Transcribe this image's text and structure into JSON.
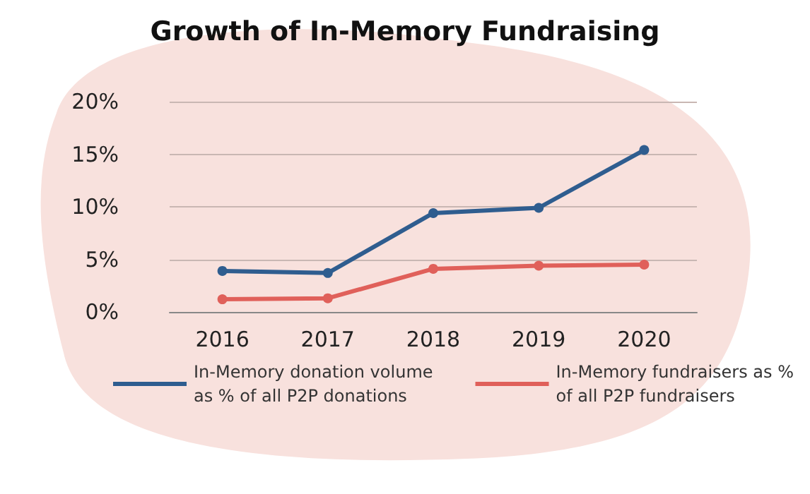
{
  "chart_data": {
    "type": "line",
    "title": "Growth of In-Memory Fundraising",
    "categories": [
      "2016",
      "2017",
      "2018",
      "2019",
      "2020"
    ],
    "series": [
      {
        "name": "In-Memory donation volume\nas % of all P2P donations",
        "color": "#2f5d8f",
        "values": [
          3.9,
          3.7,
          9.4,
          9.9,
          15.4
        ]
      },
      {
        "name": "In-Memory fundraisers as %\nof all P2P fundraisers",
        "color": "#e0605a",
        "values": [
          1.2,
          1.3,
          4.1,
          4.4,
          4.5
        ]
      }
    ],
    "ylim": [
      0,
      20
    ],
    "yticks": [
      {
        "value": 0,
        "label": "0%"
      },
      {
        "value": 5,
        "label": "5%"
      },
      {
        "value": 10,
        "label": "10%"
      },
      {
        "value": 15,
        "label": "15%"
      },
      {
        "value": 20,
        "label": "20%"
      }
    ],
    "grid": "y",
    "legend": "bottom",
    "marker": "circle",
    "line_style": "solid"
  }
}
